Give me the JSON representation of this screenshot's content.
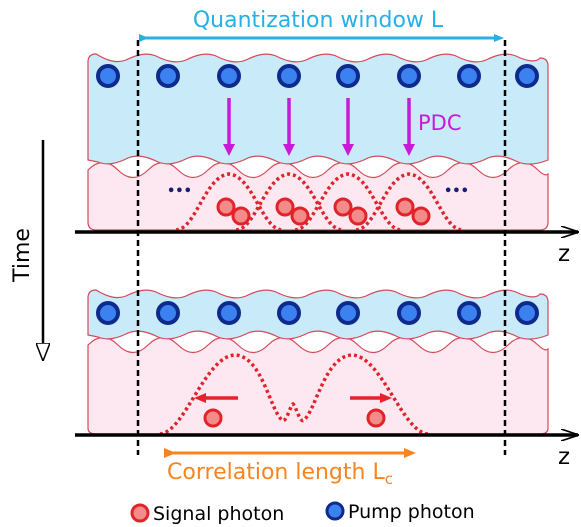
{
  "title": "Quantization window L",
  "pdc_label": "PDC",
  "time_label": "Time",
  "ellipsis": "•••",
  "axis_label_top": "z",
  "axis_label_bottom": "z",
  "correlation": {
    "text": "Correlation length L",
    "subscript": "c"
  },
  "legend": [
    {
      "label": "Signal photon",
      "color": "#f48b8b",
      "border": "#e0242a"
    },
    {
      "label": "Pump photon",
      "color": "#3b82f0",
      "border": "#0d2a8c"
    }
  ],
  "colors": {
    "window_arrow": "#26b0e8",
    "pdc_arrow": "#c81ad8",
    "pump_band": "#c9eaf8",
    "signal_band": "#fde8f1",
    "band_border": "#d24a5a",
    "signal_wave": "#e0242a",
    "correlation_arrow": "#f7851f"
  }
}
